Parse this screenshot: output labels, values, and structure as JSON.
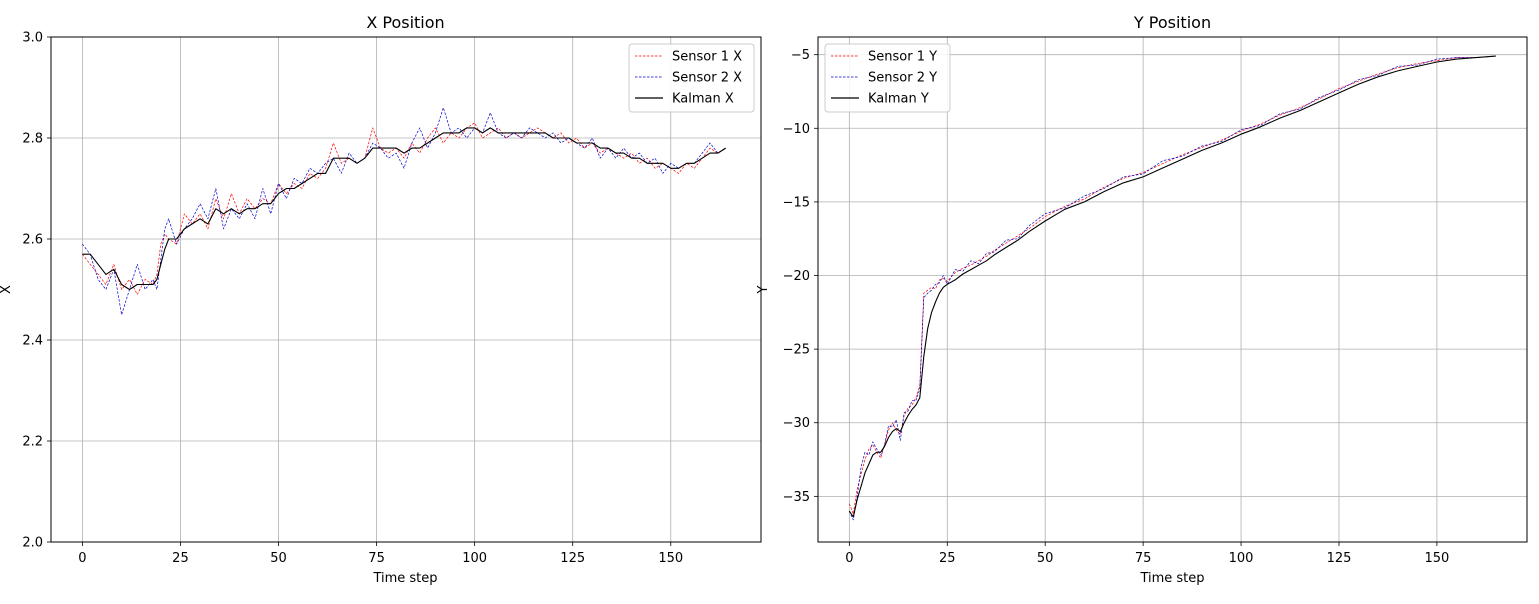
{
  "chart_data": [
    {
      "type": "line",
      "title": "X Position",
      "xlabel": "Time step",
      "ylabel": "X",
      "xlim": [
        -8,
        173
      ],
      "ylim": [
        2.0,
        3.0
      ],
      "xticks": [
        0,
        25,
        50,
        75,
        100,
        125,
        150
      ],
      "yticks": [
        2.0,
        2.2,
        2.4,
        2.6,
        2.8,
        3.0
      ],
      "ytick_labels": [
        "2.0",
        "2.2",
        "2.4",
        "2.6",
        "2.8",
        "3.0"
      ],
      "xtick_labels": [
        "0",
        "25",
        "50",
        "75",
        "100",
        "125",
        "150"
      ],
      "grid": true,
      "legend_position": "top-right",
      "series": [
        {
          "name": "Sensor 1 X",
          "color": "#ff0000",
          "style": "dashed",
          "x": [
            0,
            2,
            4,
            6,
            8,
            10,
            12,
            14,
            16,
            18,
            19,
            20,
            21,
            22,
            24,
            26,
            28,
            30,
            32,
            34,
            36,
            38,
            40,
            42,
            44,
            46,
            48,
            50,
            52,
            54,
            56,
            58,
            60,
            62,
            64,
            66,
            68,
            70,
            72,
            74,
            76,
            78,
            80,
            82,
            84,
            86,
            88,
            90,
            92,
            94,
            96,
            98,
            100,
            102,
            104,
            106,
            108,
            110,
            112,
            114,
            116,
            118,
            120,
            122,
            124,
            126,
            128,
            130,
            132,
            134,
            136,
            138,
            140,
            142,
            144,
            146,
            148,
            150,
            152,
            154,
            156,
            158,
            160,
            162,
            164
          ],
          "y": [
            2.57,
            2.55,
            2.53,
            2.51,
            2.55,
            2.5,
            2.52,
            2.49,
            2.52,
            2.51,
            2.53,
            2.59,
            2.61,
            2.6,
            2.59,
            2.65,
            2.63,
            2.65,
            2.62,
            2.68,
            2.64,
            2.69,
            2.65,
            2.68,
            2.66,
            2.68,
            2.67,
            2.71,
            2.69,
            2.71,
            2.7,
            2.73,
            2.72,
            2.74,
            2.79,
            2.75,
            2.76,
            2.75,
            2.76,
            2.82,
            2.78,
            2.77,
            2.78,
            2.76,
            2.79,
            2.77,
            2.8,
            2.82,
            2.79,
            2.81,
            2.8,
            2.82,
            2.83,
            2.8,
            2.81,
            2.82,
            2.8,
            2.81,
            2.8,
            2.81,
            2.82,
            2.81,
            2.8,
            2.81,
            2.79,
            2.8,
            2.78,
            2.79,
            2.77,
            2.78,
            2.77,
            2.76,
            2.77,
            2.75,
            2.76,
            2.74,
            2.75,
            2.74,
            2.73,
            2.75,
            2.74,
            2.76,
            2.78,
            2.77,
            2.78
          ]
        },
        {
          "name": "Sensor 2 X",
          "color": "#0000cc",
          "style": "dashed",
          "x": [
            0,
            2,
            4,
            6,
            8,
            10,
            12,
            14,
            16,
            18,
            19,
            20,
            21,
            22,
            24,
            26,
            28,
            30,
            32,
            34,
            36,
            38,
            40,
            42,
            44,
            46,
            48,
            50,
            52,
            54,
            56,
            58,
            60,
            62,
            64,
            66,
            68,
            70,
            72,
            74,
            76,
            78,
            80,
            82,
            84,
            86,
            88,
            90,
            92,
            94,
            96,
            98,
            100,
            102,
            104,
            106,
            108,
            110,
            112,
            114,
            116,
            118,
            120,
            122,
            124,
            126,
            128,
            130,
            132,
            134,
            136,
            138,
            140,
            142,
            144,
            146,
            148,
            150,
            152,
            154,
            156,
            158,
            160,
            162,
            164
          ],
          "y": [
            2.59,
            2.57,
            2.52,
            2.5,
            2.54,
            2.45,
            2.5,
            2.55,
            2.5,
            2.52,
            2.5,
            2.56,
            2.62,
            2.64,
            2.59,
            2.62,
            2.64,
            2.67,
            2.64,
            2.7,
            2.62,
            2.66,
            2.64,
            2.67,
            2.64,
            2.7,
            2.65,
            2.71,
            2.68,
            2.72,
            2.71,
            2.74,
            2.73,
            2.75,
            2.76,
            2.73,
            2.77,
            2.75,
            2.76,
            2.79,
            2.78,
            2.76,
            2.77,
            2.74,
            2.79,
            2.82,
            2.78,
            2.81,
            2.86,
            2.81,
            2.82,
            2.8,
            2.82,
            2.81,
            2.85,
            2.81,
            2.8,
            2.81,
            2.8,
            2.82,
            2.81,
            2.8,
            2.81,
            2.79,
            2.8,
            2.79,
            2.78,
            2.8,
            2.76,
            2.78,
            2.76,
            2.78,
            2.76,
            2.77,
            2.75,
            2.76,
            2.73,
            2.75,
            2.74,
            2.75,
            2.75,
            2.77,
            2.79,
            2.77,
            2.78
          ]
        },
        {
          "name": "Kalman X",
          "color": "#000000",
          "style": "solid",
          "x": [
            0,
            2,
            4,
            6,
            8,
            10,
            12,
            14,
            16,
            18,
            19,
            20,
            21,
            22,
            24,
            26,
            28,
            30,
            32,
            34,
            36,
            38,
            40,
            42,
            44,
            46,
            48,
            50,
            52,
            54,
            56,
            58,
            60,
            62,
            64,
            66,
            68,
            70,
            72,
            74,
            76,
            78,
            80,
            82,
            84,
            86,
            88,
            90,
            92,
            94,
            96,
            98,
            100,
            102,
            104,
            106,
            108,
            110,
            112,
            114,
            116,
            118,
            120,
            122,
            124,
            126,
            128,
            130,
            132,
            134,
            136,
            138,
            140,
            142,
            144,
            146,
            148,
            150,
            152,
            154,
            156,
            158,
            160,
            162,
            164
          ],
          "y": [
            2.57,
            2.57,
            2.55,
            2.53,
            2.54,
            2.51,
            2.5,
            2.51,
            2.51,
            2.51,
            2.52,
            2.55,
            2.58,
            2.6,
            2.6,
            2.62,
            2.63,
            2.64,
            2.63,
            2.66,
            2.65,
            2.66,
            2.65,
            2.66,
            2.66,
            2.67,
            2.67,
            2.69,
            2.7,
            2.7,
            2.71,
            2.72,
            2.73,
            2.73,
            2.76,
            2.76,
            2.76,
            2.75,
            2.76,
            2.78,
            2.78,
            2.78,
            2.78,
            2.77,
            2.78,
            2.78,
            2.79,
            2.8,
            2.81,
            2.81,
            2.81,
            2.82,
            2.82,
            2.81,
            2.82,
            2.81,
            2.81,
            2.81,
            2.81,
            2.81,
            2.81,
            2.81,
            2.8,
            2.8,
            2.8,
            2.79,
            2.79,
            2.79,
            2.78,
            2.78,
            2.77,
            2.77,
            2.76,
            2.76,
            2.75,
            2.75,
            2.75,
            2.74,
            2.74,
            2.75,
            2.75,
            2.76,
            2.77,
            2.77,
            2.78
          ]
        }
      ]
    },
    {
      "type": "line",
      "title": "Y Position",
      "xlabel": "Time step",
      "ylabel": "Y",
      "xlim": [
        -8,
        173
      ],
      "ylim": [
        -38.1,
        -3.8
      ],
      "xticks": [
        0,
        25,
        50,
        75,
        100,
        125,
        150
      ],
      "yticks": [
        -35,
        -30,
        -25,
        -20,
        -15,
        -10,
        -5
      ],
      "ytick_labels": [
        "−35",
        "−30",
        "−25",
        "−20",
        "−15",
        "−10",
        "−5"
      ],
      "xtick_labels": [
        "0",
        "25",
        "50",
        "75",
        "100",
        "125",
        "150"
      ],
      "grid": true,
      "legend_position": "top-left",
      "series": [
        {
          "name": "Sensor 1 Y",
          "color": "#ff0000",
          "style": "dashed",
          "x": [
            0,
            1,
            2,
            3,
            4,
            5,
            6,
            7,
            8,
            9,
            10,
            11,
            12,
            13,
            14,
            15,
            16,
            17,
            18,
            19,
            20,
            21,
            22,
            23,
            24,
            25,
            27,
            29,
            31,
            33,
            35,
            37,
            40,
            43,
            46,
            50,
            55,
            60,
            65,
            70,
            75,
            80,
            85,
            90,
            95,
            100,
            105,
            110,
            115,
            120,
            125,
            130,
            135,
            140,
            145,
            150,
            155,
            160,
            165
          ],
          "y": [
            -35.5,
            -36.2,
            -34.5,
            -33.5,
            -32.5,
            -31.8,
            -31.5,
            -32.0,
            -32.4,
            -31.5,
            -30.5,
            -30.0,
            -30.5,
            -30.8,
            -29.5,
            -29.0,
            -28.8,
            -28.3,
            -27.5,
            -21.2,
            -21.0,
            -20.8,
            -20.9,
            -20.3,
            -20.2,
            -20.4,
            -19.8,
            -19.5,
            -19.3,
            -19.0,
            -18.7,
            -18.3,
            -17.8,
            -17.3,
            -16.8,
            -16.0,
            -15.3,
            -14.8,
            -14.0,
            -13.4,
            -13.0,
            -12.4,
            -11.8,
            -11.3,
            -10.8,
            -10.2,
            -9.7,
            -9.1,
            -8.6,
            -8.0,
            -7.3,
            -6.8,
            -6.3,
            -5.9,
            -5.6,
            -5.4,
            -5.2,
            -5.2,
            -5.1
          ]
        },
        {
          "name": "Sensor 2 Y",
          "color": "#0000cc",
          "style": "dashed",
          "x": [
            0,
            1,
            2,
            3,
            4,
            5,
            6,
            7,
            8,
            9,
            10,
            11,
            12,
            13,
            14,
            15,
            16,
            17,
            18,
            19,
            20,
            21,
            22,
            23,
            24,
            25,
            27,
            29,
            31,
            33,
            35,
            37,
            40,
            43,
            46,
            50,
            55,
            60,
            65,
            70,
            75,
            80,
            85,
            90,
            95,
            100,
            105,
            110,
            115,
            120,
            125,
            130,
            135,
            140,
            145,
            150,
            155,
            160,
            165
          ],
          "y": [
            -36.0,
            -36.6,
            -35.0,
            -33.0,
            -32.0,
            -32.2,
            -31.3,
            -31.8,
            -32.2,
            -31.5,
            -30.2,
            -30.3,
            -29.8,
            -31.2,
            -29.3,
            -29.2,
            -28.5,
            -28.5,
            -27.7,
            -21.5,
            -21.2,
            -21.0,
            -20.6,
            -20.5,
            -20.0,
            -20.6,
            -19.6,
            -19.7,
            -19.0,
            -19.2,
            -18.5,
            -18.4,
            -17.6,
            -17.5,
            -16.6,
            -15.8,
            -15.4,
            -14.6,
            -14.1,
            -13.3,
            -13.1,
            -12.2,
            -11.9,
            -11.2,
            -10.9,
            -10.1,
            -9.8,
            -9.0,
            -8.7,
            -7.9,
            -7.4,
            -6.7,
            -6.4,
            -5.8,
            -5.7,
            -5.3,
            -5.2,
            -5.2,
            -5.1
          ]
        },
        {
          "name": "Kalman Y",
          "color": "#000000",
          "style": "solid",
          "x": [
            0,
            1,
            2,
            3,
            4,
            5,
            6,
            7,
            8,
            9,
            10,
            11,
            12,
            13,
            14,
            15,
            16,
            17,
            18,
            19,
            20,
            21,
            22,
            23,
            24,
            25,
            27,
            29,
            31,
            33,
            35,
            37,
            40,
            43,
            46,
            50,
            55,
            60,
            65,
            70,
            75,
            80,
            85,
            90,
            95,
            100,
            105,
            110,
            115,
            120,
            125,
            130,
            135,
            140,
            145,
            150,
            155,
            160,
            165
          ],
          "y": [
            -36.0,
            -36.4,
            -35.2,
            -34.3,
            -33.4,
            -32.8,
            -32.2,
            -32.0,
            -32.0,
            -31.6,
            -31.0,
            -30.6,
            -30.4,
            -30.6,
            -30.0,
            -29.5,
            -29.1,
            -28.8,
            -28.3,
            -25.5,
            -23.6,
            -22.5,
            -21.8,
            -21.2,
            -20.8,
            -20.6,
            -20.3,
            -19.9,
            -19.6,
            -19.3,
            -19.0,
            -18.6,
            -18.1,
            -17.6,
            -17.0,
            -16.3,
            -15.5,
            -15.0,
            -14.3,
            -13.7,
            -13.3,
            -12.7,
            -12.1,
            -11.5,
            -11.0,
            -10.4,
            -9.9,
            -9.3,
            -8.8,
            -8.2,
            -7.6,
            -7.0,
            -6.5,
            -6.1,
            -5.8,
            -5.5,
            -5.3,
            -5.2,
            -5.1
          ]
        }
      ]
    }
  ]
}
